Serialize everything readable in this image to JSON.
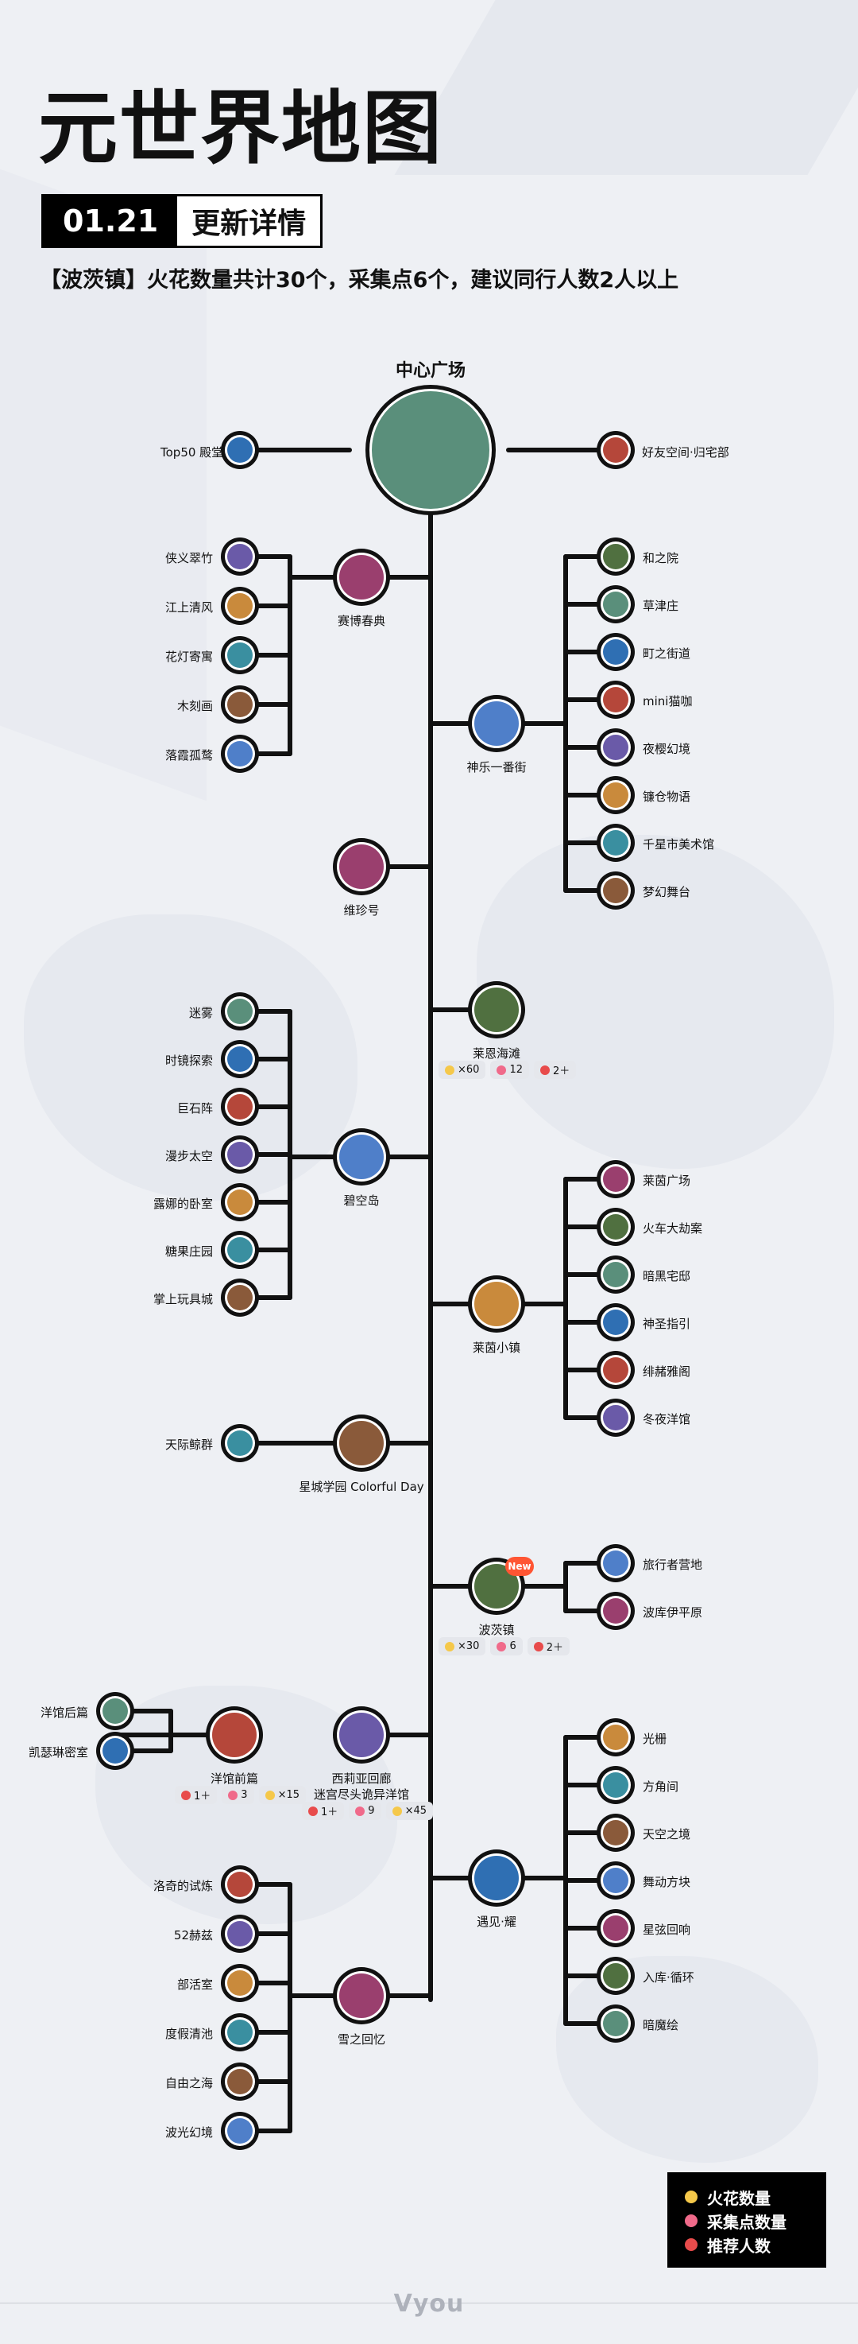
{
  "title": "元世界地图",
  "date": "01.21",
  "date_label": "更新详情",
  "subtitle": "【波茨镇】火花数量共计30个，采集点6个，建议同行人数2人以上",
  "center": {
    "label": "中心广场"
  },
  "top_left": {
    "label": "Top50 殿堂"
  },
  "top_right": {
    "label": "好友空间·归宅部"
  },
  "hubs": {
    "saibo": {
      "label": "赛博春典",
      "children": [
        "侠义翠竹",
        "江上清风",
        "花灯寄寓",
        "木刻画",
        "落霞孤鹜"
      ]
    },
    "shenle": {
      "label": "神乐一番街",
      "children": [
        "和之院",
        "草津庄",
        "町之街道",
        "mini猫咖",
        "夜樱幻境",
        "镰仓物语",
        "千星市美术馆",
        "梦幻舞台"
      ]
    },
    "weizhen": {
      "label": "维珍号"
    },
    "laien_beach": {
      "label": "莱恩海滩",
      "stats": [
        "×60",
        "12",
        "2＋"
      ]
    },
    "bikong": {
      "label": "碧空岛",
      "children": [
        "迷雾",
        "时镜探索",
        "巨石阵",
        "漫步太空",
        "露娜的卧室",
        "糖果庄园",
        "掌上玩具城"
      ]
    },
    "laiyin": {
      "label": "莱茵小镇",
      "children": [
        "莱茵广场",
        "火车大劫案",
        "暗黑宅邸",
        "神圣指引",
        "绯赭雅阁",
        "冬夜洋馆"
      ]
    },
    "xingcheng": {
      "label": "星城学园 Colorful Day",
      "children": [
        "天际鲸群"
      ]
    },
    "boci": {
      "label": "波茨镇",
      "badge": "New",
      "stats": [
        "×30",
        "6",
        "2＋"
      ],
      "children": [
        "旅行者营地",
        "波库伊平原"
      ]
    },
    "yangguan": {
      "label": "洋馆前篇",
      "stats": [
        "1＋",
        "3",
        "×15"
      ],
      "children": [
        "洋馆后篇",
        "凯瑟琳密室"
      ]
    },
    "xiliya": {
      "label": "西莉亚回廊",
      "label2": "迷宫尽头诡异洋馆",
      "stats": [
        "1＋",
        "9",
        "×45"
      ]
    },
    "yujian": {
      "label": "遇见·耀",
      "children": [
        "光栅",
        "方角间",
        "天空之境",
        "舞动方块",
        "星弦回响",
        "入库·循环",
        "暗魔绘"
      ]
    },
    "xuezhi": {
      "label": "雪之回忆",
      "children": [
        "洛奇的试炼",
        "52赫兹",
        "部活室",
        "度假清池",
        "自由之海",
        "波光幻境"
      ]
    }
  },
  "legend": {
    "spark": "火花数量",
    "collect": "采集点数量",
    "people": "推荐人数"
  },
  "colors": {
    "spark": "#f5c84a",
    "collect": "#f06a8a",
    "people": "#e84b4b",
    "accent": "#ff5533"
  },
  "brand": "Vyou"
}
